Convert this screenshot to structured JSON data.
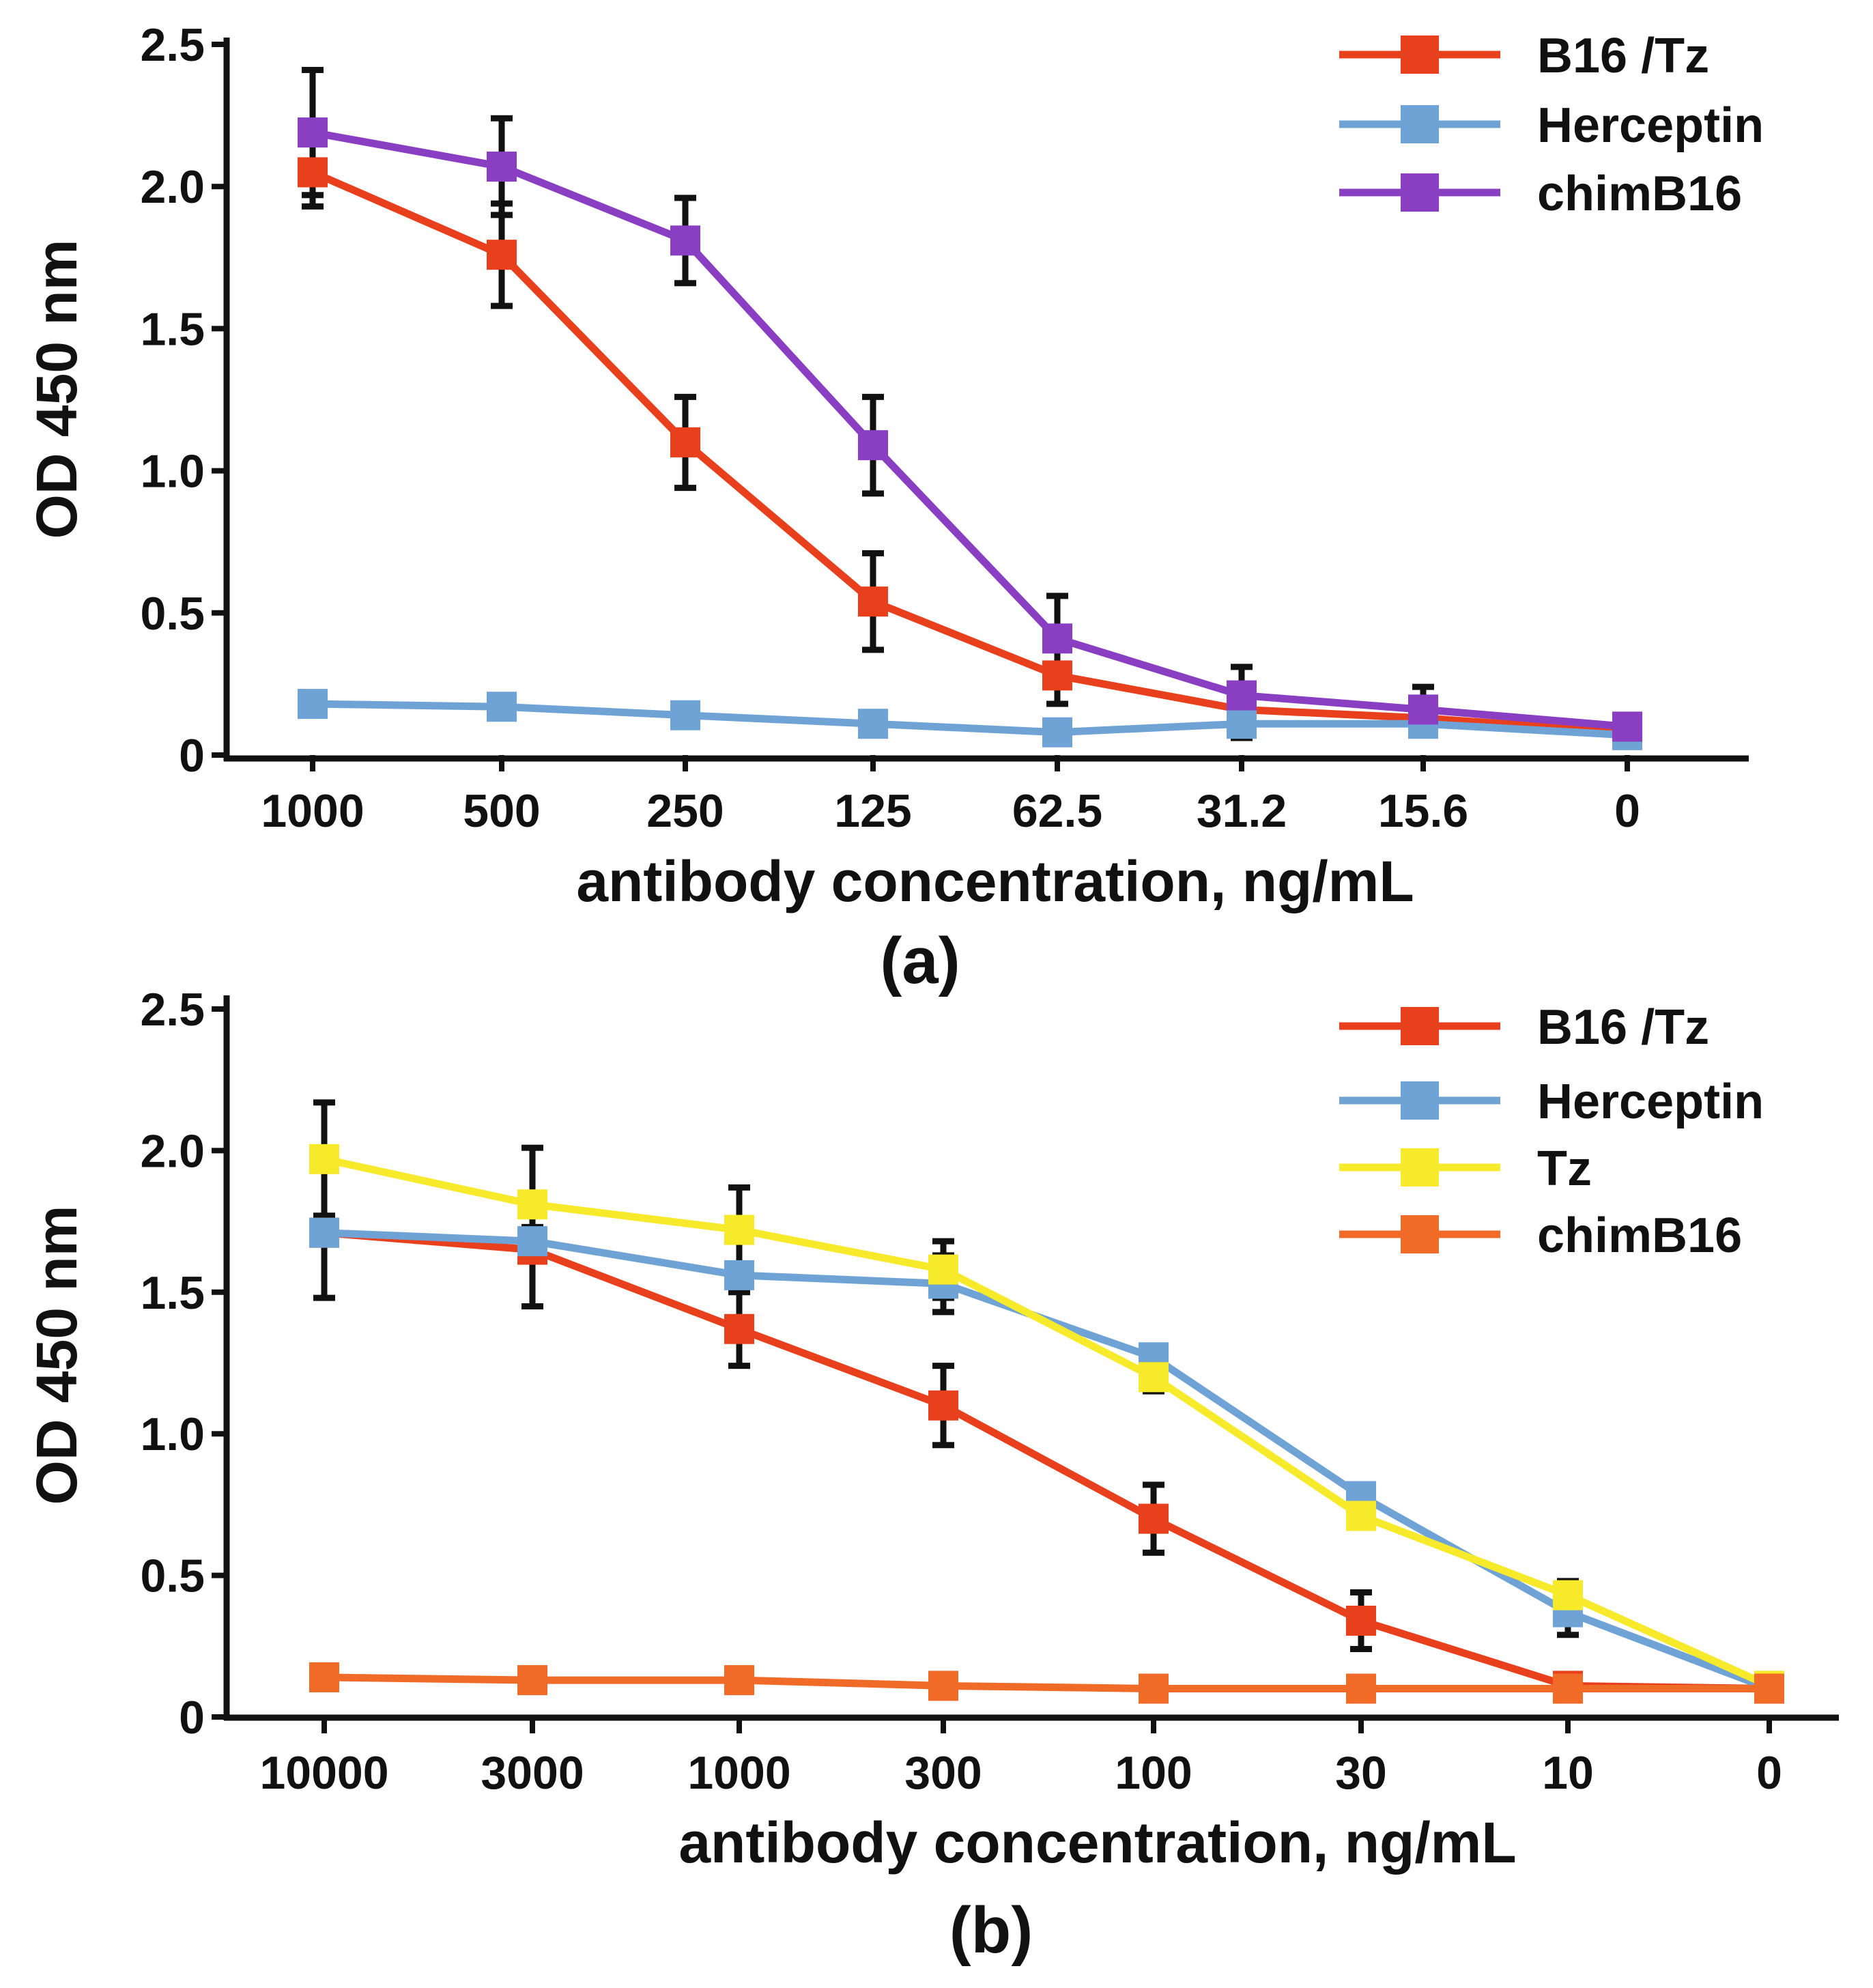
{
  "chart_data": [
    {
      "type": "line",
      "panel_label": "(a)",
      "xlabel": "antibody concentration, ng/mL",
      "ylabel": "OD 450 nm",
      "categories": [
        "1000",
        "500",
        "250",
        "125",
        "62.5",
        "31.2",
        "15.6",
        "0"
      ],
      "ylim": [
        0,
        2.5
      ],
      "yticks": [
        "0",
        "0.5",
        "1.0",
        "1.5",
        "2.0",
        "2.5"
      ],
      "legend_position": "top-right",
      "series": [
        {
          "name": "B16 /Tz",
          "color": "#e8401c",
          "values": [
            2.05,
            1.76,
            1.1,
            0.54,
            0.28,
            0.16,
            0.13,
            0.08
          ],
          "errors": [
            0.12,
            0.18,
            0.16,
            0.17,
            0.1,
            0.05,
            0.04,
            0.02
          ]
        },
        {
          "name": "Herceptin",
          "color": "#6fa3d6",
          "values": [
            0.18,
            0.17,
            0.14,
            0.11,
            0.08,
            0.11,
            0.11,
            0.07
          ],
          "errors": [
            0,
            0,
            0,
            0,
            0,
            0.05,
            0.04,
            0
          ]
        },
        {
          "name": "chimB16",
          "color": "#8a3fc2",
          "values": [
            2.19,
            2.07,
            1.81,
            1.09,
            0.41,
            0.21,
            0.16,
            0.1
          ],
          "errors": [
            0.22,
            0.17,
            0.15,
            0.17,
            0.15,
            0.1,
            0.08,
            0.02
          ]
        }
      ]
    },
    {
      "type": "line",
      "panel_label": "(b)",
      "xlabel": "antibody concentration, ng/mL",
      "ylabel": "OD 450 nm",
      "categories": [
        "10000",
        "3000",
        "1000",
        "300",
        "100",
        "30",
        "10",
        "0"
      ],
      "ylim": [
        0,
        2.5
      ],
      "yticks": [
        "0",
        "0.5",
        "1.0",
        "1.5",
        "2.0",
        "2.5"
      ],
      "legend_position": "top-right",
      "series": [
        {
          "name": "B16 /Tz",
          "color": "#e8401c",
          "values": [
            1.71,
            1.65,
            1.37,
            1.1,
            0.7,
            0.34,
            0.11,
            0.1
          ],
          "errors": [
            0.23,
            0.2,
            0.13,
            0.14,
            0.12,
            0.1,
            0.02,
            0.02
          ]
        },
        {
          "name": "Herceptin",
          "color": "#6fa3d6",
          "values": [
            1.71,
            1.68,
            1.56,
            1.53,
            1.27,
            0.78,
            0.37,
            0.1
          ],
          "errors": [
            0,
            0.05,
            0,
            0.1,
            0,
            0,
            0.08,
            0
          ]
        },
        {
          "name": "Tz",
          "color": "#f7ea2a",
          "values": [
            1.97,
            1.81,
            1.72,
            1.58,
            1.2,
            0.71,
            0.43,
            0.11
          ],
          "errors": [
            0.2,
            0.2,
            0.15,
            0.1,
            0.05,
            0,
            0.05,
            0
          ]
        },
        {
          "name": "chimB16",
          "color": "#f06a28",
          "values": [
            0.14,
            0.13,
            0.13,
            0.11,
            0.1,
            0.1,
            0.1,
            0.1
          ],
          "errors": [
            0,
            0,
            0,
            0,
            0,
            0,
            0,
            0
          ]
        }
      ]
    }
  ]
}
